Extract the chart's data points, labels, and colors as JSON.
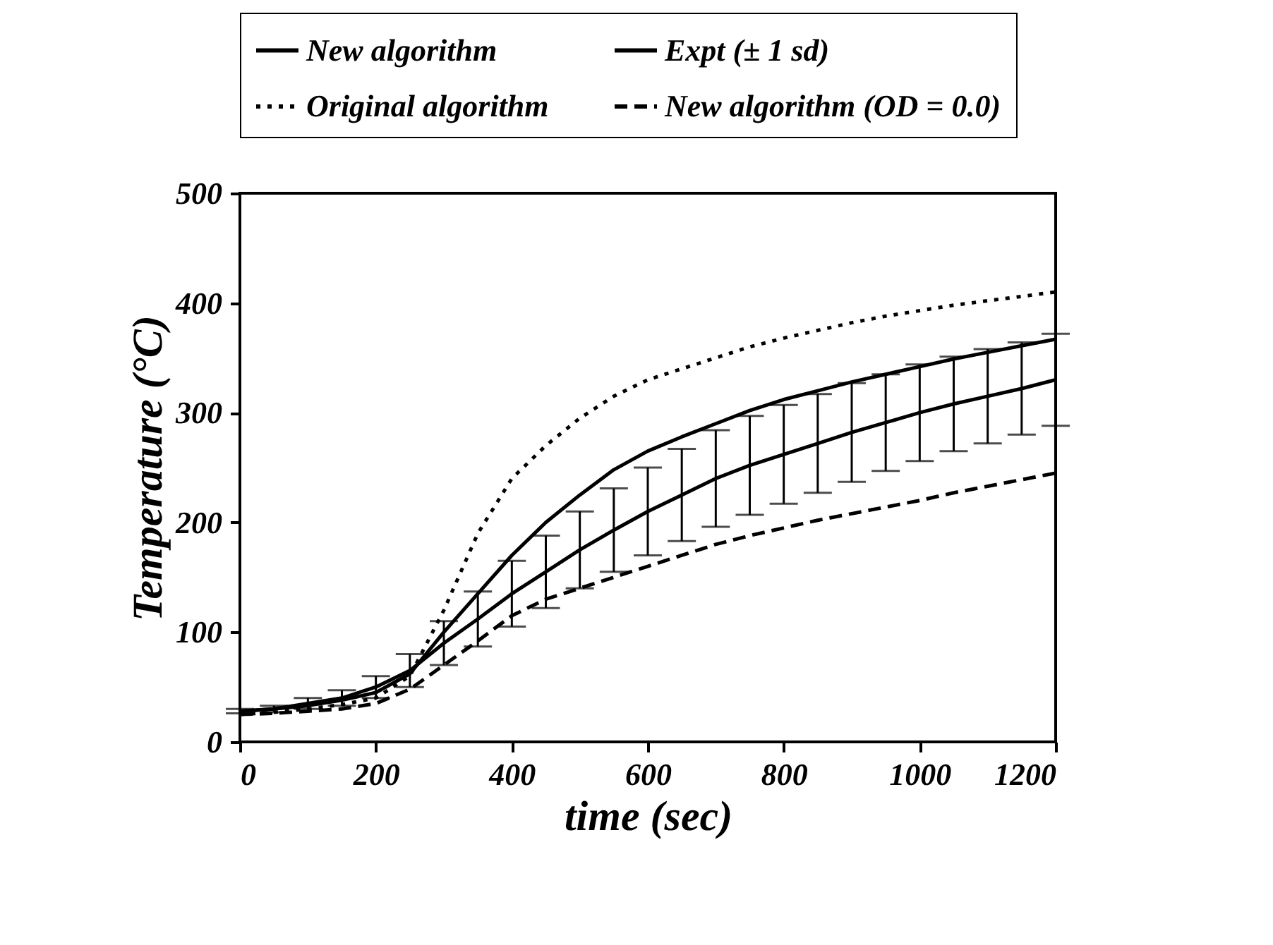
{
  "chart_data": {
    "type": "line",
    "xlabel": "time (sec)",
    "ylabel": "Temperature (°C)",
    "x": [
      0,
      50,
      100,
      150,
      200,
      250,
      300,
      350,
      400,
      450,
      500,
      550,
      600,
      650,
      700,
      750,
      800,
      850,
      900,
      950,
      1000,
      1050,
      1100,
      1150,
      1200
    ],
    "series": [
      {
        "name": "New algorithm",
        "color": "#000000",
        "line_style": "solid",
        "values": [
          28,
          30,
          33,
          38,
          45,
          62,
          100,
          135,
          170,
          200,
          225,
          248,
          265,
          278,
          290,
          302,
          312,
          320,
          328,
          335,
          342,
          349,
          355,
          361,
          367
        ]
      },
      {
        "name": "Expt (± 1 sd)",
        "color": "#000000",
        "line_style": "solid",
        "values": [
          28,
          30,
          35,
          40,
          50,
          65,
          90,
          112,
          135,
          155,
          175,
          193,
          210,
          225,
          240,
          252,
          262,
          272,
          282,
          291,
          300,
          308,
          315,
          322,
          330
        ],
        "errors": [
          2,
          3,
          5,
          7,
          10,
          15,
          20,
          25,
          30,
          33,
          35,
          38,
          40,
          42,
          44,
          45,
          45,
          45,
          45,
          44,
          44,
          43,
          43,
          42,
          42
        ]
      },
      {
        "name": "Original algorithm",
        "color": "#000000",
        "line_style": "dotted",
        "values": [
          25,
          27,
          30,
          34,
          40,
          60,
          120,
          190,
          240,
          270,
          295,
          315,
          330,
          340,
          350,
          360,
          368,
          375,
          382,
          388,
          393,
          398,
          402,
          406,
          410
        ]
      },
      {
        "name": "New algorithm (OD = 0.0)",
        "color": "#000000",
        "line_style": "dashed",
        "values": [
          25,
          26,
          28,
          30,
          35,
          48,
          70,
          92,
          115,
          130,
          140,
          150,
          160,
          170,
          180,
          188,
          195,
          202,
          208,
          214,
          220,
          227,
          233,
          239,
          245
        ]
      }
    ],
    "xlim": [
      0,
      1200
    ],
    "xticks": [
      0,
      200,
      400,
      600,
      800,
      1000,
      1200
    ],
    "ylim": [
      0,
      500
    ],
    "yticks": [
      0,
      100,
      200,
      300,
      400,
      500
    ],
    "grid": false,
    "legend": "top",
    "marker": "none"
  }
}
